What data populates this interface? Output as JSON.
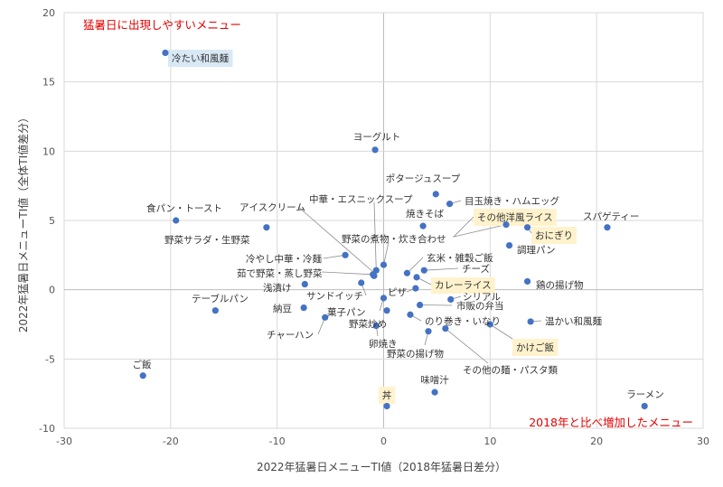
{
  "chart_data": {
    "type": "scatter",
    "xlabel": "2022年猛暑日メニューTI値（2018年猛暑日差分）",
    "ylabel": "2022年猛暑日メニューTI値（全体TI値差分）",
    "xlim": [
      -30,
      30
    ],
    "ylim": [
      -10,
      20
    ],
    "xticks": [
      -30,
      -20,
      -10,
      0,
      10,
      20,
      30
    ],
    "yticks": [
      -10,
      -5,
      0,
      5,
      10,
      15,
      20
    ],
    "grid": true,
    "annotations": [
      "猛暑日に出現しやすいメニュー",
      "2018年と比べ増加したメニュー"
    ],
    "points": [
      {
        "label": "冷たい和風麺",
        "x": -20.5,
        "y": 17.1,
        "highlight": "blue"
      },
      {
        "label": "ヨーグルト",
        "x": -0.8,
        "y": 10.1
      },
      {
        "label": "ポタージュスープ",
        "x": 4.9,
        "y": 6.9
      },
      {
        "label": "目玉焼き・ハムエッグ",
        "x": 6.2,
        "y": 6.2
      },
      {
        "label": "焼きそば",
        "x": 3.7,
        "y": 4.6
      },
      {
        "label": "その他洋風ライス",
        "x": 11.5,
        "y": 4.7,
        "highlight": "yellow"
      },
      {
        "label": "おにぎり",
        "x": 13.5,
        "y": 4.5,
        "highlight": "yellow"
      },
      {
        "label": "調理パン",
        "x": 11.8,
        "y": 3.2
      },
      {
        "label": "スパゲティー",
        "x": 21.0,
        "y": 4.5
      },
      {
        "label": "食パン・トースト",
        "x": -19.5,
        "y": 5.0
      },
      {
        "label": "野菜サラダ・生野菜",
        "x": -11.0,
        "y": 4.5
      },
      {
        "label": "アイスクリーム",
        "x": -0.9,
        "y": 1.0
      },
      {
        "label": "中華・エスニックスープ",
        "x": -0.7,
        "y": 1.4
      },
      {
        "label": "野菜の煮物・炊き合わせ",
        "x": 0.0,
        "y": 1.8
      },
      {
        "label": "玄米・雑穀ご飯",
        "x": 2.2,
        "y": 1.2
      },
      {
        "label": "チーズ",
        "x": 3.8,
        "y": 1.4
      },
      {
        "label": "カレーライス",
        "x": 3.1,
        "y": 0.9,
        "highlight": "yellow"
      },
      {
        "label": "冷やし中華・冷麺",
        "x": -3.6,
        "y": 2.5
      },
      {
        "label": "茹で野菜・蒸し野菜",
        "x": -1.0,
        "y": 1.1
      },
      {
        "label": "浅漬け",
        "x": -7.4,
        "y": 0.4
      },
      {
        "label": "サンドイッチ",
        "x": -2.1,
        "y": 0.5
      },
      {
        "label": "ピザ",
        "x": 3.0,
        "y": 0.1
      },
      {
        "label": "鶏の揚げ物",
        "x": 13.5,
        "y": 0.6
      },
      {
        "label": "シリアル",
        "x": 6.3,
        "y": -0.7
      },
      {
        "label": "市販の弁当",
        "x": 3.4,
        "y": -1.1
      },
      {
        "label": "テーブルパン",
        "x": -15.8,
        "y": -1.5
      },
      {
        "label": "納豆",
        "x": -7.5,
        "y": -1.3
      },
      {
        "label": "菓子パン",
        "x": 0.3,
        "y": -1.5
      },
      {
        "label": "野菜炒め",
        "x": 0.0,
        "y": -0.6
      },
      {
        "label": "のり巻き・いなり",
        "x": 2.5,
        "y": -1.8
      },
      {
        "label": "温かい和風麺",
        "x": 13.8,
        "y": -2.3
      },
      {
        "label": "チャーハン",
        "x": -5.5,
        "y": -2.0
      },
      {
        "label": "卵焼き",
        "x": -0.7,
        "y": -2.6
      },
      {
        "label": "野菜の揚げ物",
        "x": 4.2,
        "y": -3.0
      },
      {
        "label": "その他の麺・パスタ類",
        "x": 5.8,
        "y": -2.8
      },
      {
        "label": "かけご飯",
        "x": 10.0,
        "y": -2.5,
        "highlight": "yellow"
      },
      {
        "label": "ご飯",
        "x": -22.6,
        "y": -6.2
      },
      {
        "label": "味噌汁",
        "x": 4.8,
        "y": -7.4
      },
      {
        "label": "丼",
        "x": 0.3,
        "y": -8.4,
        "highlight": "yellow"
      },
      {
        "label": "ラーメン",
        "x": 24.5,
        "y": -8.4
      }
    ]
  }
}
